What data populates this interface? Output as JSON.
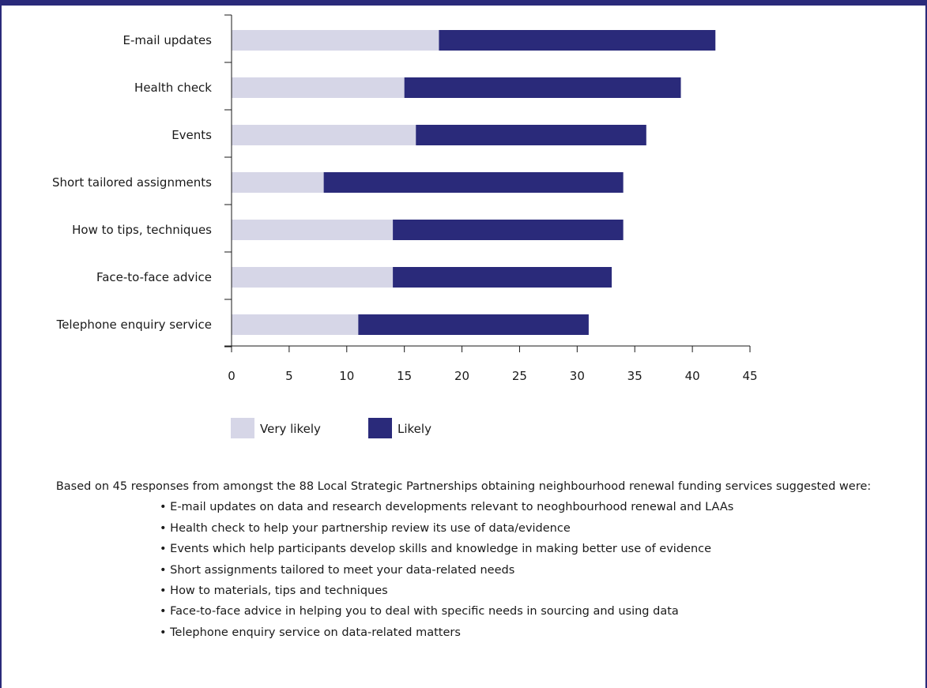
{
  "colors": {
    "very_likely": "#d6d6e7",
    "likely": "#2a2a7a",
    "axis": "#1a1a1a",
    "frame": "#2a2a7a"
  },
  "chart_data": {
    "type": "bar",
    "orientation": "horizontal",
    "stacked": true,
    "categories": [
      "E-mail updates",
      "Health check",
      "Events",
      "Short tailored assignments",
      "How to tips, techniques",
      "Face-to-face advice",
      "Telephone enquiry service"
    ],
    "series": [
      {
        "name": "Very likely",
        "color": "#d6d6e7",
        "values": [
          18,
          15,
          16,
          8,
          14,
          14,
          11
        ]
      },
      {
        "name": "Likely",
        "color": "#2a2a7a",
        "values": [
          24,
          24,
          20,
          26,
          20,
          19,
          20
        ]
      }
    ],
    "xlim": [
      0,
      45
    ],
    "xticks": [
      0,
      5,
      10,
      15,
      20,
      25,
      30,
      35,
      40,
      45
    ],
    "title": "",
    "xlabel": "",
    "ylabel": "",
    "grid": false,
    "legend_position": "bottom-left"
  },
  "notes": {
    "intro": "Based on 45 responses from amongst the 88 Local Strategic Partnerships obtaining neighbourhood renewal funding services suggested were:",
    "items": [
      "• E-mail updates on data and research developments relevant to neoghbourhood renewal and LAAs",
      "• Health check to help your partnership review its use of data/evidence",
      "• Events which help participants develop skills and knowledge in making better use of evidence",
      "• Short assignments tailored to meet your data-related needs",
      "• How to materials, tips and techniques",
      "• Face-to-face advice in helping you to deal with specific needs in sourcing and using data",
      "• Telephone enquiry service on data-related matters"
    ]
  }
}
